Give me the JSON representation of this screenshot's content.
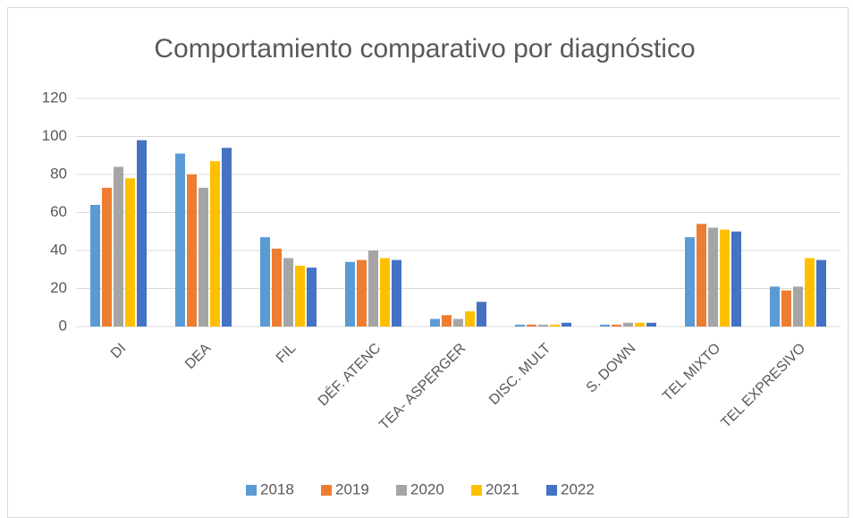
{
  "chart_data": {
    "type": "bar",
    "title": "Comportamiento comparativo por diagnóstico",
    "categories": [
      "DI",
      "DEA",
      "FIL",
      "DÉF. ATENC",
      "TEA- ASPERGER",
      "DISC. MULT",
      "S. DOWN",
      "TEL MIXTO",
      "TEL EXPRESIVO"
    ],
    "series": [
      {
        "name": "2018",
        "color": "#5b9bd5",
        "values": [
          64,
          91,
          47,
          34,
          4,
          1,
          1,
          47,
          21
        ]
      },
      {
        "name": "2019",
        "color": "#ed7d31",
        "values": [
          73,
          80,
          41,
          35,
          6,
          1,
          1,
          54,
          19
        ]
      },
      {
        "name": "2020",
        "color": "#a5a5a5",
        "values": [
          84,
          73,
          36,
          40,
          4,
          1,
          2,
          52,
          21
        ]
      },
      {
        "name": "2021",
        "color": "#ffc000",
        "values": [
          78,
          87,
          32,
          36,
          8,
          1,
          2,
          51,
          36
        ]
      },
      {
        "name": "2022",
        "color": "#4472c4",
        "values": [
          98,
          94,
          31,
          35,
          13,
          2,
          2,
          50,
          35
        ]
      }
    ],
    "ylim": [
      0,
      120
    ],
    "yticks": [
      0,
      20,
      40,
      60,
      80,
      100,
      120
    ],
    "grid": true,
    "legend": "bottom"
  }
}
